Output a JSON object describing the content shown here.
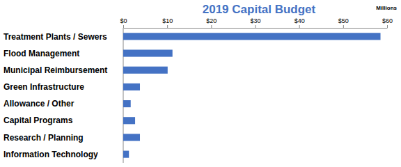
{
  "chart_data": {
    "type": "bar",
    "orientation": "horizontal",
    "title": "2019 Capital Budget",
    "xlabel": "Millions",
    "categories": [
      "Treatment Plants / Sewers",
      "Flood Management",
      "Municipal Reimbursement",
      "Green Infrastructure",
      "Allowance / Other",
      "Capital Programs",
      "Research / Planning",
      "Information Technology"
    ],
    "values": [
      58.5,
      11.2,
      10.1,
      3.8,
      1.7,
      2.7,
      3.8,
      1.3
    ],
    "color": "#4472c4",
    "xlim": [
      0,
      60
    ],
    "xticks": [
      {
        "value": 0,
        "label": "$0"
      },
      {
        "value": 10,
        "label": "$10"
      },
      {
        "value": 20,
        "label": "$20"
      },
      {
        "value": 30,
        "label": "$30"
      },
      {
        "value": 40,
        "label": "$40"
      },
      {
        "value": 50,
        "label": "$50"
      },
      {
        "value": 60,
        "label": "$60"
      }
    ],
    "grid": false
  }
}
